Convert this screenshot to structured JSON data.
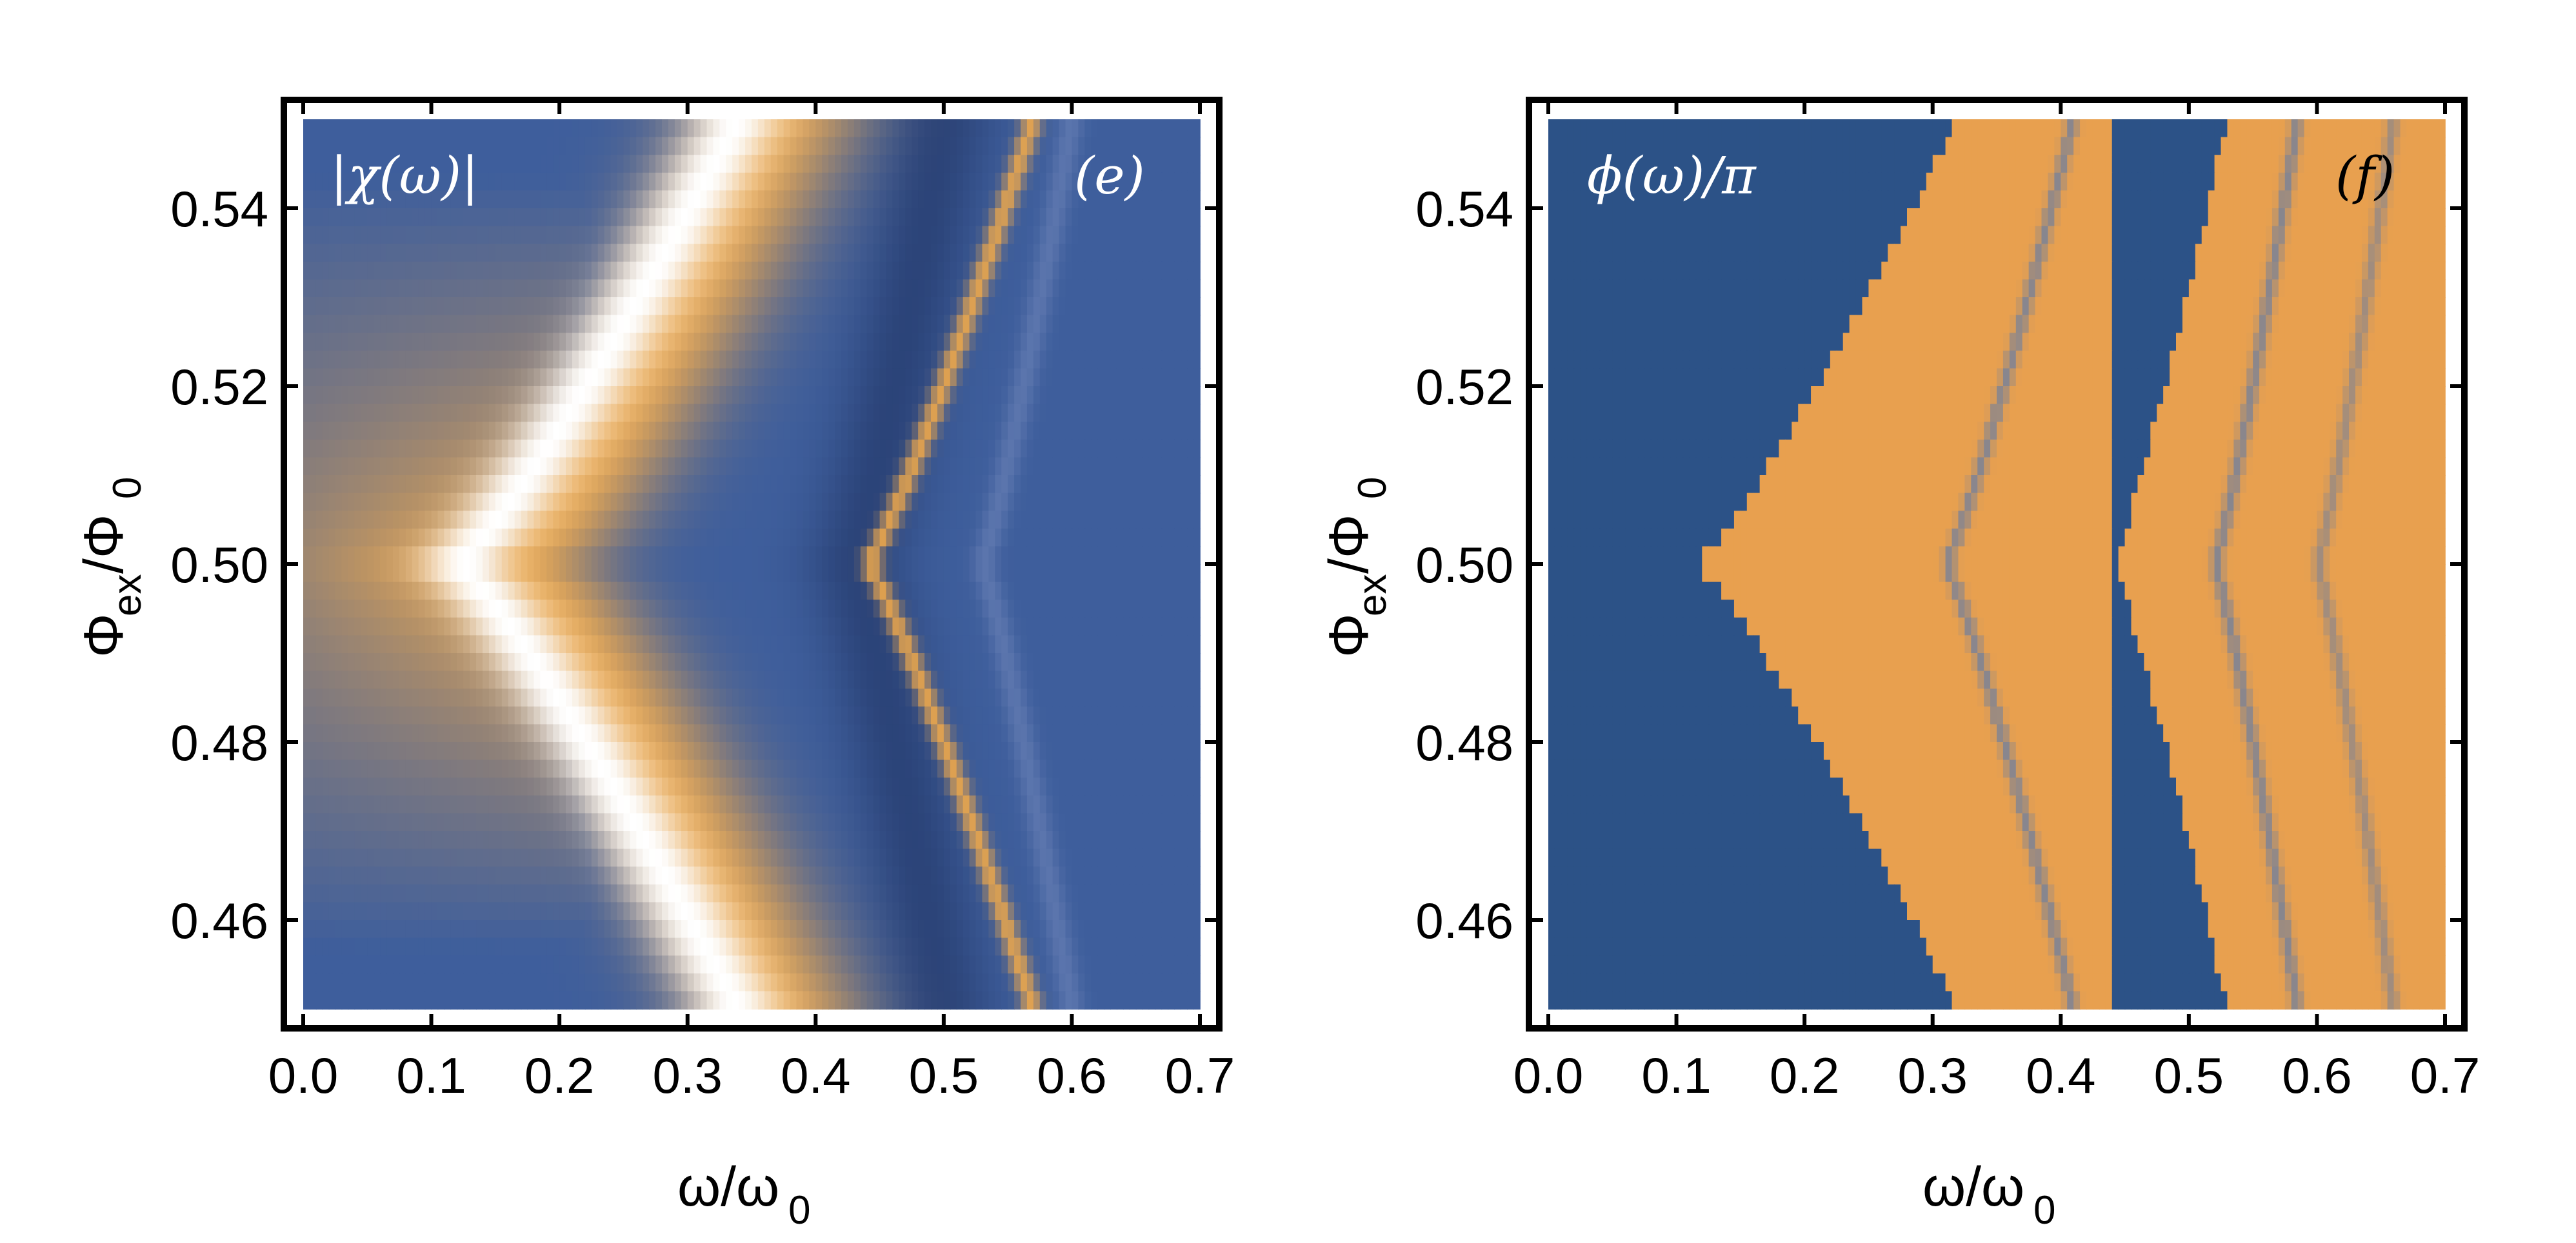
{
  "chart_data": [
    {
      "type": "heatmap",
      "id": "panel-e",
      "title": "|χ(ω)|",
      "panel_label": "(e)",
      "xlabel": {
        "main": "ω/ω",
        "sub": "0"
      },
      "ylabel": {
        "main": "Φ",
        "sub1": "ex",
        "sep": "/Φ",
        "sub2": "0"
      },
      "xlim": [
        0.0,
        0.7
      ],
      "ylim": [
        0.45,
        0.55
      ],
      "xticks": [
        "0.0",
        "0.1",
        "0.2",
        "0.3",
        "0.4",
        "0.5",
        "0.6",
        "0.7"
      ],
      "yticks": [
        "0.46",
        "0.48",
        "0.50",
        "0.52",
        "0.54"
      ],
      "colors": {
        "low": "#3e5e9c",
        "high": "#f0a94a",
        "peak": "#ffffff"
      },
      "features": [
        {
          "name": "main resonance (saturated)",
          "omega_at_0.50": 0.12,
          "omega_at_edges": 0.34,
          "width": 0.035
        },
        {
          "name": "orange halo",
          "omega_at_0.50": 0.16,
          "omega_at_edges": 0.37,
          "width": 0.07
        },
        {
          "name": "dark valley",
          "omega_at_0.50": 0.43,
          "omega_at_edges": 0.5,
          "width": 0.04
        },
        {
          "name": "thin resonance",
          "omega_at_0.50": 0.44,
          "omega_at_edges": 0.57,
          "width": 0.008
        },
        {
          "name": "faint resonance",
          "omega_at_0.50": 0.53,
          "omega_at_edges": 0.6,
          "width": 0.01
        }
      ]
    },
    {
      "type": "heatmap",
      "id": "panel-f",
      "title": "ϕ(ω)/π",
      "panel_label": "(f)",
      "xlabel": {
        "main": "ω/ω",
        "sub": "0"
      },
      "ylabel": {
        "main": "Φ",
        "sub1": "ex",
        "sep": "/Φ",
        "sub2": "0"
      },
      "xlim": [
        0.0,
        0.7
      ],
      "ylim": [
        0.45,
        0.55
      ],
      "xticks": [
        "0.0",
        "0.1",
        "0.2",
        "0.3",
        "0.4",
        "0.5",
        "0.6",
        "0.7"
      ],
      "yticks": [
        "0.46",
        "0.48",
        "0.50",
        "0.52",
        "0.54"
      ],
      "colors": {
        "low": "#2c5287",
        "high": "#e8a04f",
        "line": "#6f7f9e"
      },
      "features": [
        {
          "name": "phase jump boundary 1",
          "omega_at_0.50": 0.115,
          "omega_at_edges": 0.32
        },
        {
          "name": "thin line",
          "omega_at_0.50": 0.31,
          "omega_at_edges": 0.41
        },
        {
          "name": "blue band",
          "omega_start": 0.44,
          "omega_end_at_0.50": 0.44,
          "omega_end_at_edges": 0.53
        },
        {
          "name": "thin line",
          "omega_at_0.50": 0.52,
          "omega_at_edges": 0.585
        },
        {
          "name": "thin line",
          "omega_at_0.50": 0.6,
          "omega_at_edges": 0.66
        }
      ]
    }
  ]
}
